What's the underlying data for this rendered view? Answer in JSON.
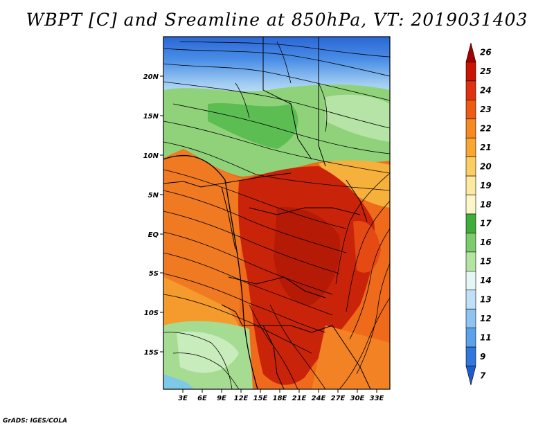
{
  "title": "WBPT [C] and Sreamline at 850hPa, VT: 2019031403",
  "credit": "GrADS: IGES/COLA",
  "map": {
    "lat_labels": [
      "20N",
      "15N",
      "10N",
      "5N",
      "EQ",
      "5S",
      "10S",
      "15S"
    ],
    "lon_labels": [
      "3E",
      "6E",
      "9E",
      "12E",
      "15E",
      "18E",
      "21E",
      "24E",
      "27E",
      "30E",
      "33E"
    ]
  },
  "colorbar": {
    "labels": [
      "26",
      "25",
      "24",
      "23",
      "22",
      "21",
      "20",
      "19",
      "18",
      "17",
      "16",
      "15",
      "14",
      "13",
      "12",
      "11",
      "9",
      "7"
    ],
    "colors": [
      "#a50000",
      "#c81400",
      "#e03010",
      "#ef5a14",
      "#f58a1e",
      "#f8a832",
      "#fbce64",
      "#fde9a0",
      "#fdf6c8",
      "#3fae3a",
      "#7dcc6c",
      "#b4e4a2",
      "#e4f6f6",
      "#bfe0f8",
      "#8fc4f2",
      "#5aa2ea",
      "#3178dc",
      "#1e5ccc"
    ]
  }
}
